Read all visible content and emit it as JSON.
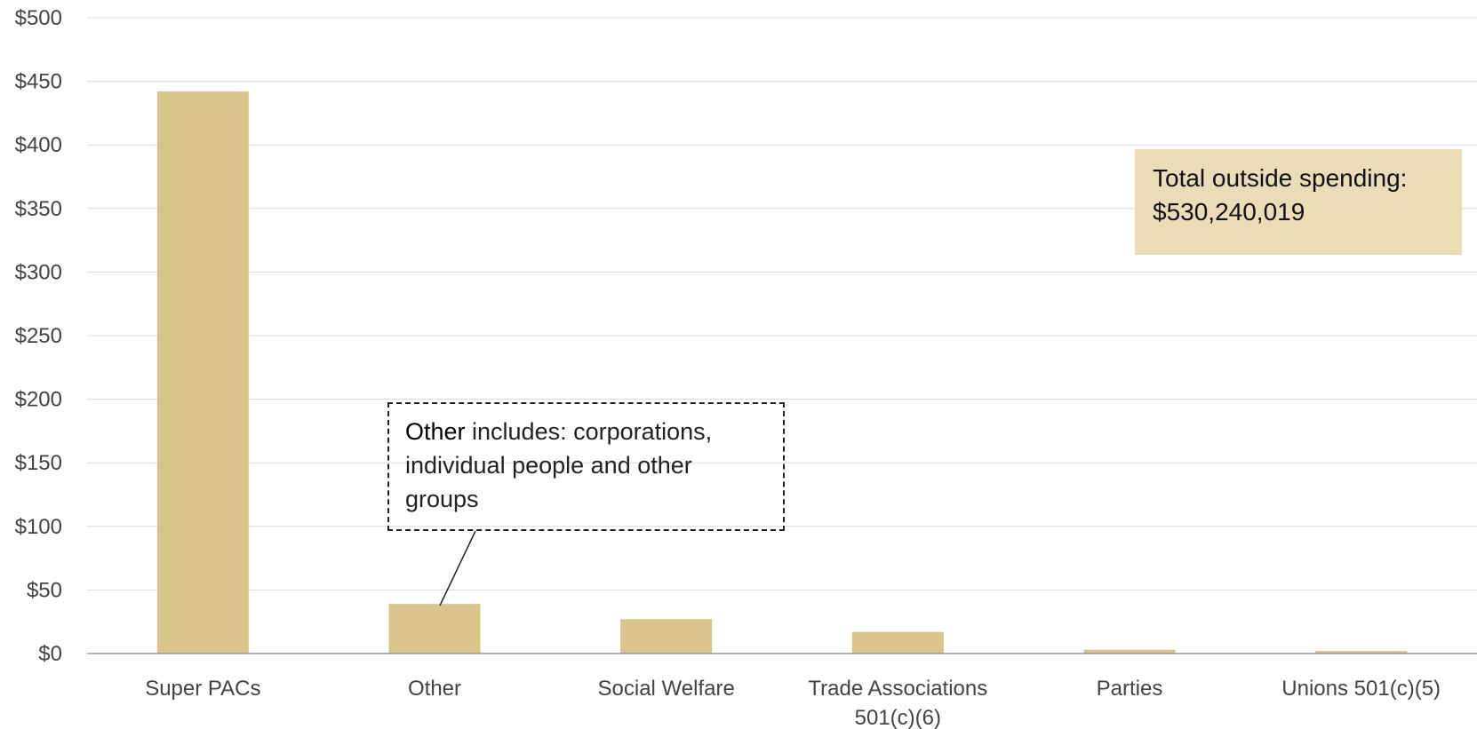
{
  "chart_data": {
    "type": "bar",
    "categories": [
      "Super PACs",
      "Other",
      "Social Welfare",
      "Trade Associations 501(c)(6)",
      "Parties",
      "Unions 501(c)(5)"
    ],
    "category_lines": [
      [
        "Super PACs"
      ],
      [
        "Other"
      ],
      [
        "Social Welfare"
      ],
      [
        "Trade Associations",
        "501(c)(6)"
      ],
      [
        "Parties"
      ],
      [
        "Unions 501(c)(5)"
      ]
    ],
    "values": [
      442,
      39,
      27,
      17,
      3,
      2
    ],
    "ylim": [
      0,
      500
    ],
    "yticks": [
      "$0",
      "$50",
      "$100",
      "$150",
      "$200",
      "$250",
      "$300",
      "$350",
      "$400",
      "$450",
      "$500"
    ],
    "ytick_values": [
      0,
      50,
      100,
      150,
      200,
      250,
      300,
      350,
      400,
      450,
      500
    ],
    "grid": true,
    "bar_color": "#d9c48c",
    "annotations": {
      "total_label": "Total outside spending:",
      "total_value": "$530,240,019",
      "note_lead": "Other",
      "note_text": " includes: corporations, individual people and other groups"
    }
  }
}
